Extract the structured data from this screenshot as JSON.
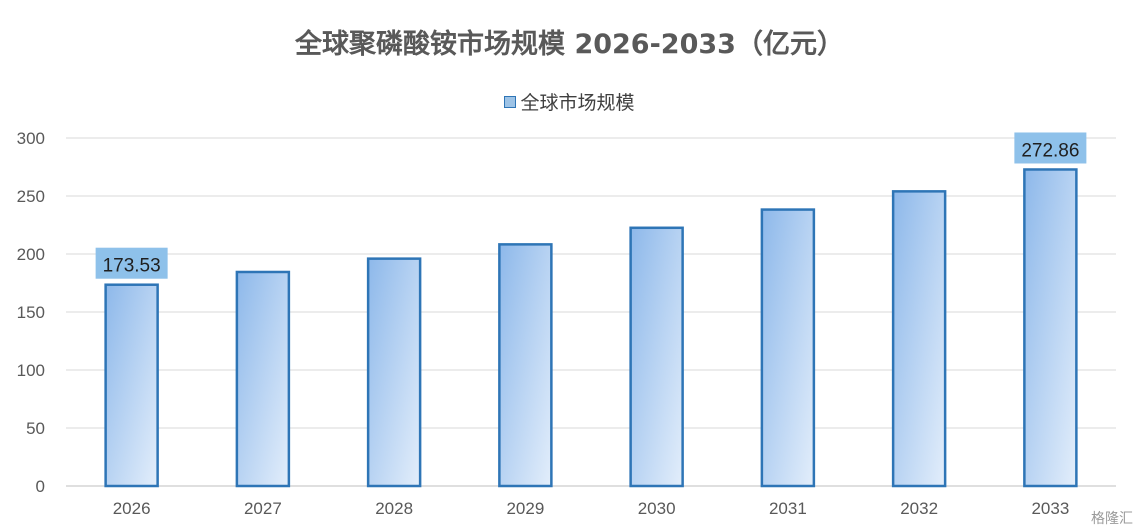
{
  "chart_data": {
    "type": "bar",
    "title": "全球聚磷酸铵市场规模 2026-2033（亿元）",
    "categories": [
      "2026",
      "2027",
      "2028",
      "2029",
      "2030",
      "2031",
      "2032",
      "2033"
    ],
    "series": [
      {
        "name": "全球市场规模",
        "values": [
          173.53,
          184.5,
          196.0,
          208.3,
          222.6,
          238.3,
          254.0,
          272.86
        ]
      }
    ],
    "data_labels": [
      {
        "index": 0,
        "text": "173.53"
      },
      {
        "index": 7,
        "text": "272.86"
      }
    ],
    "yticks": [
      "0",
      "50",
      "100",
      "150",
      "200",
      "250",
      "300"
    ],
    "ylim": [
      0,
      300
    ],
    "grid": "horizontal",
    "legend_position": "top-center",
    "colors": {
      "bar_border": "#2e75b6",
      "bar_fill_dark": "#8db8ea",
      "bar_fill_light": "#e3eefb",
      "label_bg": "#8ec1ea",
      "grid": "#d9d9d9",
      "axis_text": "#595959"
    }
  },
  "watermark": "格隆汇"
}
